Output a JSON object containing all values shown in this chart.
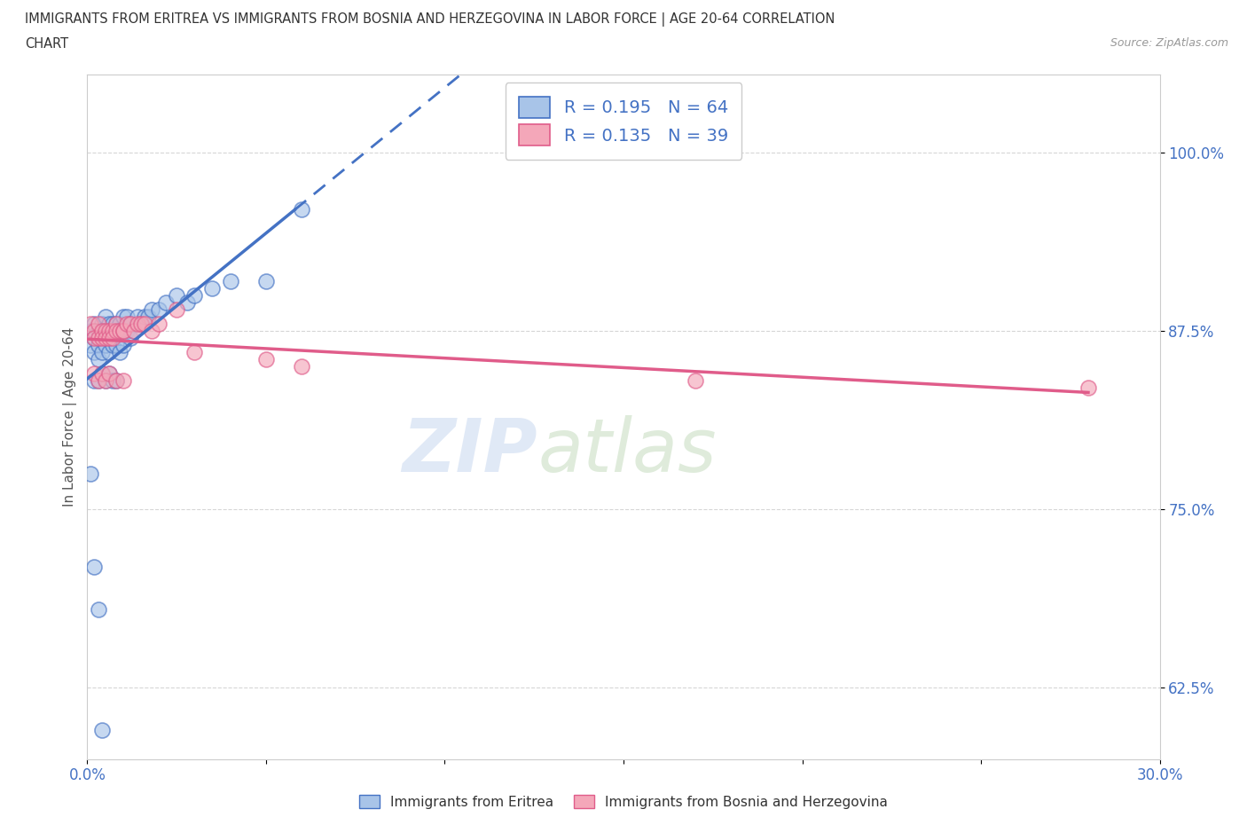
{
  "title_line1": "IMMIGRANTS FROM ERITREA VS IMMIGRANTS FROM BOSNIA AND HERZEGOVINA IN LABOR FORCE | AGE 20-64 CORRELATION",
  "title_line2": "CHART",
  "source": "Source: ZipAtlas.com",
  "ylabel": "In Labor Force | Age 20-64",
  "xlim": [
    0.0,
    0.3
  ],
  "ylim": [
    0.575,
    1.055
  ],
  "yticks": [
    0.625,
    0.75,
    0.875,
    1.0
  ],
  "ytick_labels": [
    "62.5%",
    "75.0%",
    "87.5%",
    "100.0%"
  ],
  "xticks": [
    0.0,
    0.05,
    0.1,
    0.15,
    0.2,
    0.25,
    0.3
  ],
  "xtick_labels": [
    "0.0%",
    "",
    "",
    "",
    "",
    "",
    "30.0%"
  ],
  "legend_eritrea_R": "0.195",
  "legend_eritrea_N": "64",
  "legend_bosnia_R": "0.135",
  "legend_bosnia_N": "39",
  "color_eritrea": "#a8c4e8",
  "color_bosnia": "#f4a7b9",
  "color_trendline_eritrea": "#4472c4",
  "color_trendline_bosnia": "#e05c8a",
  "eritrea_x": [
    0.001,
    0.001,
    0.002,
    0.002,
    0.002,
    0.003,
    0.003,
    0.003,
    0.003,
    0.004,
    0.004,
    0.004,
    0.004,
    0.005,
    0.005,
    0.005,
    0.005,
    0.006,
    0.006,
    0.006,
    0.006,
    0.007,
    0.007,
    0.007,
    0.007,
    0.008,
    0.008,
    0.008,
    0.009,
    0.009,
    0.009,
    0.01,
    0.01,
    0.01,
    0.011,
    0.011,
    0.012,
    0.012,
    0.013,
    0.014,
    0.015,
    0.016,
    0.017,
    0.018,
    0.02,
    0.022,
    0.025,
    0.028,
    0.03,
    0.035,
    0.04,
    0.05,
    0.06,
    0.002,
    0.003,
    0.004,
    0.005,
    0.006,
    0.007,
    0.008,
    0.001,
    0.002,
    0.003,
    0.004
  ],
  "eritrea_y": [
    0.875,
    0.865,
    0.88,
    0.87,
    0.86,
    0.875,
    0.87,
    0.865,
    0.855,
    0.88,
    0.875,
    0.87,
    0.86,
    0.885,
    0.875,
    0.87,
    0.865,
    0.88,
    0.875,
    0.87,
    0.86,
    0.88,
    0.875,
    0.87,
    0.865,
    0.88,
    0.875,
    0.865,
    0.88,
    0.875,
    0.86,
    0.885,
    0.875,
    0.865,
    0.885,
    0.875,
    0.88,
    0.87,
    0.875,
    0.885,
    0.88,
    0.885,
    0.885,
    0.89,
    0.89,
    0.895,
    0.9,
    0.895,
    0.9,
    0.905,
    0.91,
    0.91,
    0.96,
    0.84,
    0.84,
    0.845,
    0.84,
    0.845,
    0.84,
    0.84,
    0.775,
    0.71,
    0.68,
    0.595
  ],
  "bosnia_x": [
    0.001,
    0.002,
    0.002,
    0.003,
    0.003,
    0.004,
    0.004,
    0.005,
    0.005,
    0.006,
    0.006,
    0.007,
    0.007,
    0.008,
    0.008,
    0.009,
    0.01,
    0.01,
    0.011,
    0.012,
    0.013,
    0.014,
    0.015,
    0.016,
    0.018,
    0.02,
    0.025,
    0.002,
    0.003,
    0.004,
    0.005,
    0.006,
    0.008,
    0.01,
    0.03,
    0.05,
    0.06,
    0.17,
    0.28
  ],
  "bosnia_y": [
    0.88,
    0.875,
    0.87,
    0.88,
    0.87,
    0.875,
    0.87,
    0.875,
    0.87,
    0.875,
    0.87,
    0.875,
    0.87,
    0.88,
    0.875,
    0.875,
    0.875,
    0.875,
    0.88,
    0.88,
    0.875,
    0.88,
    0.88,
    0.88,
    0.875,
    0.88,
    0.89,
    0.845,
    0.84,
    0.845,
    0.84,
    0.845,
    0.84,
    0.84,
    0.86,
    0.855,
    0.85,
    0.84,
    0.835
  ],
  "trendline_eritrea_x0": 0.0,
  "trendline_eritrea_x_solid_end": 0.05,
  "trendline_eritrea_x_dash_end": 0.3,
  "trendline_bosnia_x0": 0.0,
  "trendline_bosnia_x_solid_end": 0.28,
  "trendline_bosnia_x_dash_end": 0.3
}
